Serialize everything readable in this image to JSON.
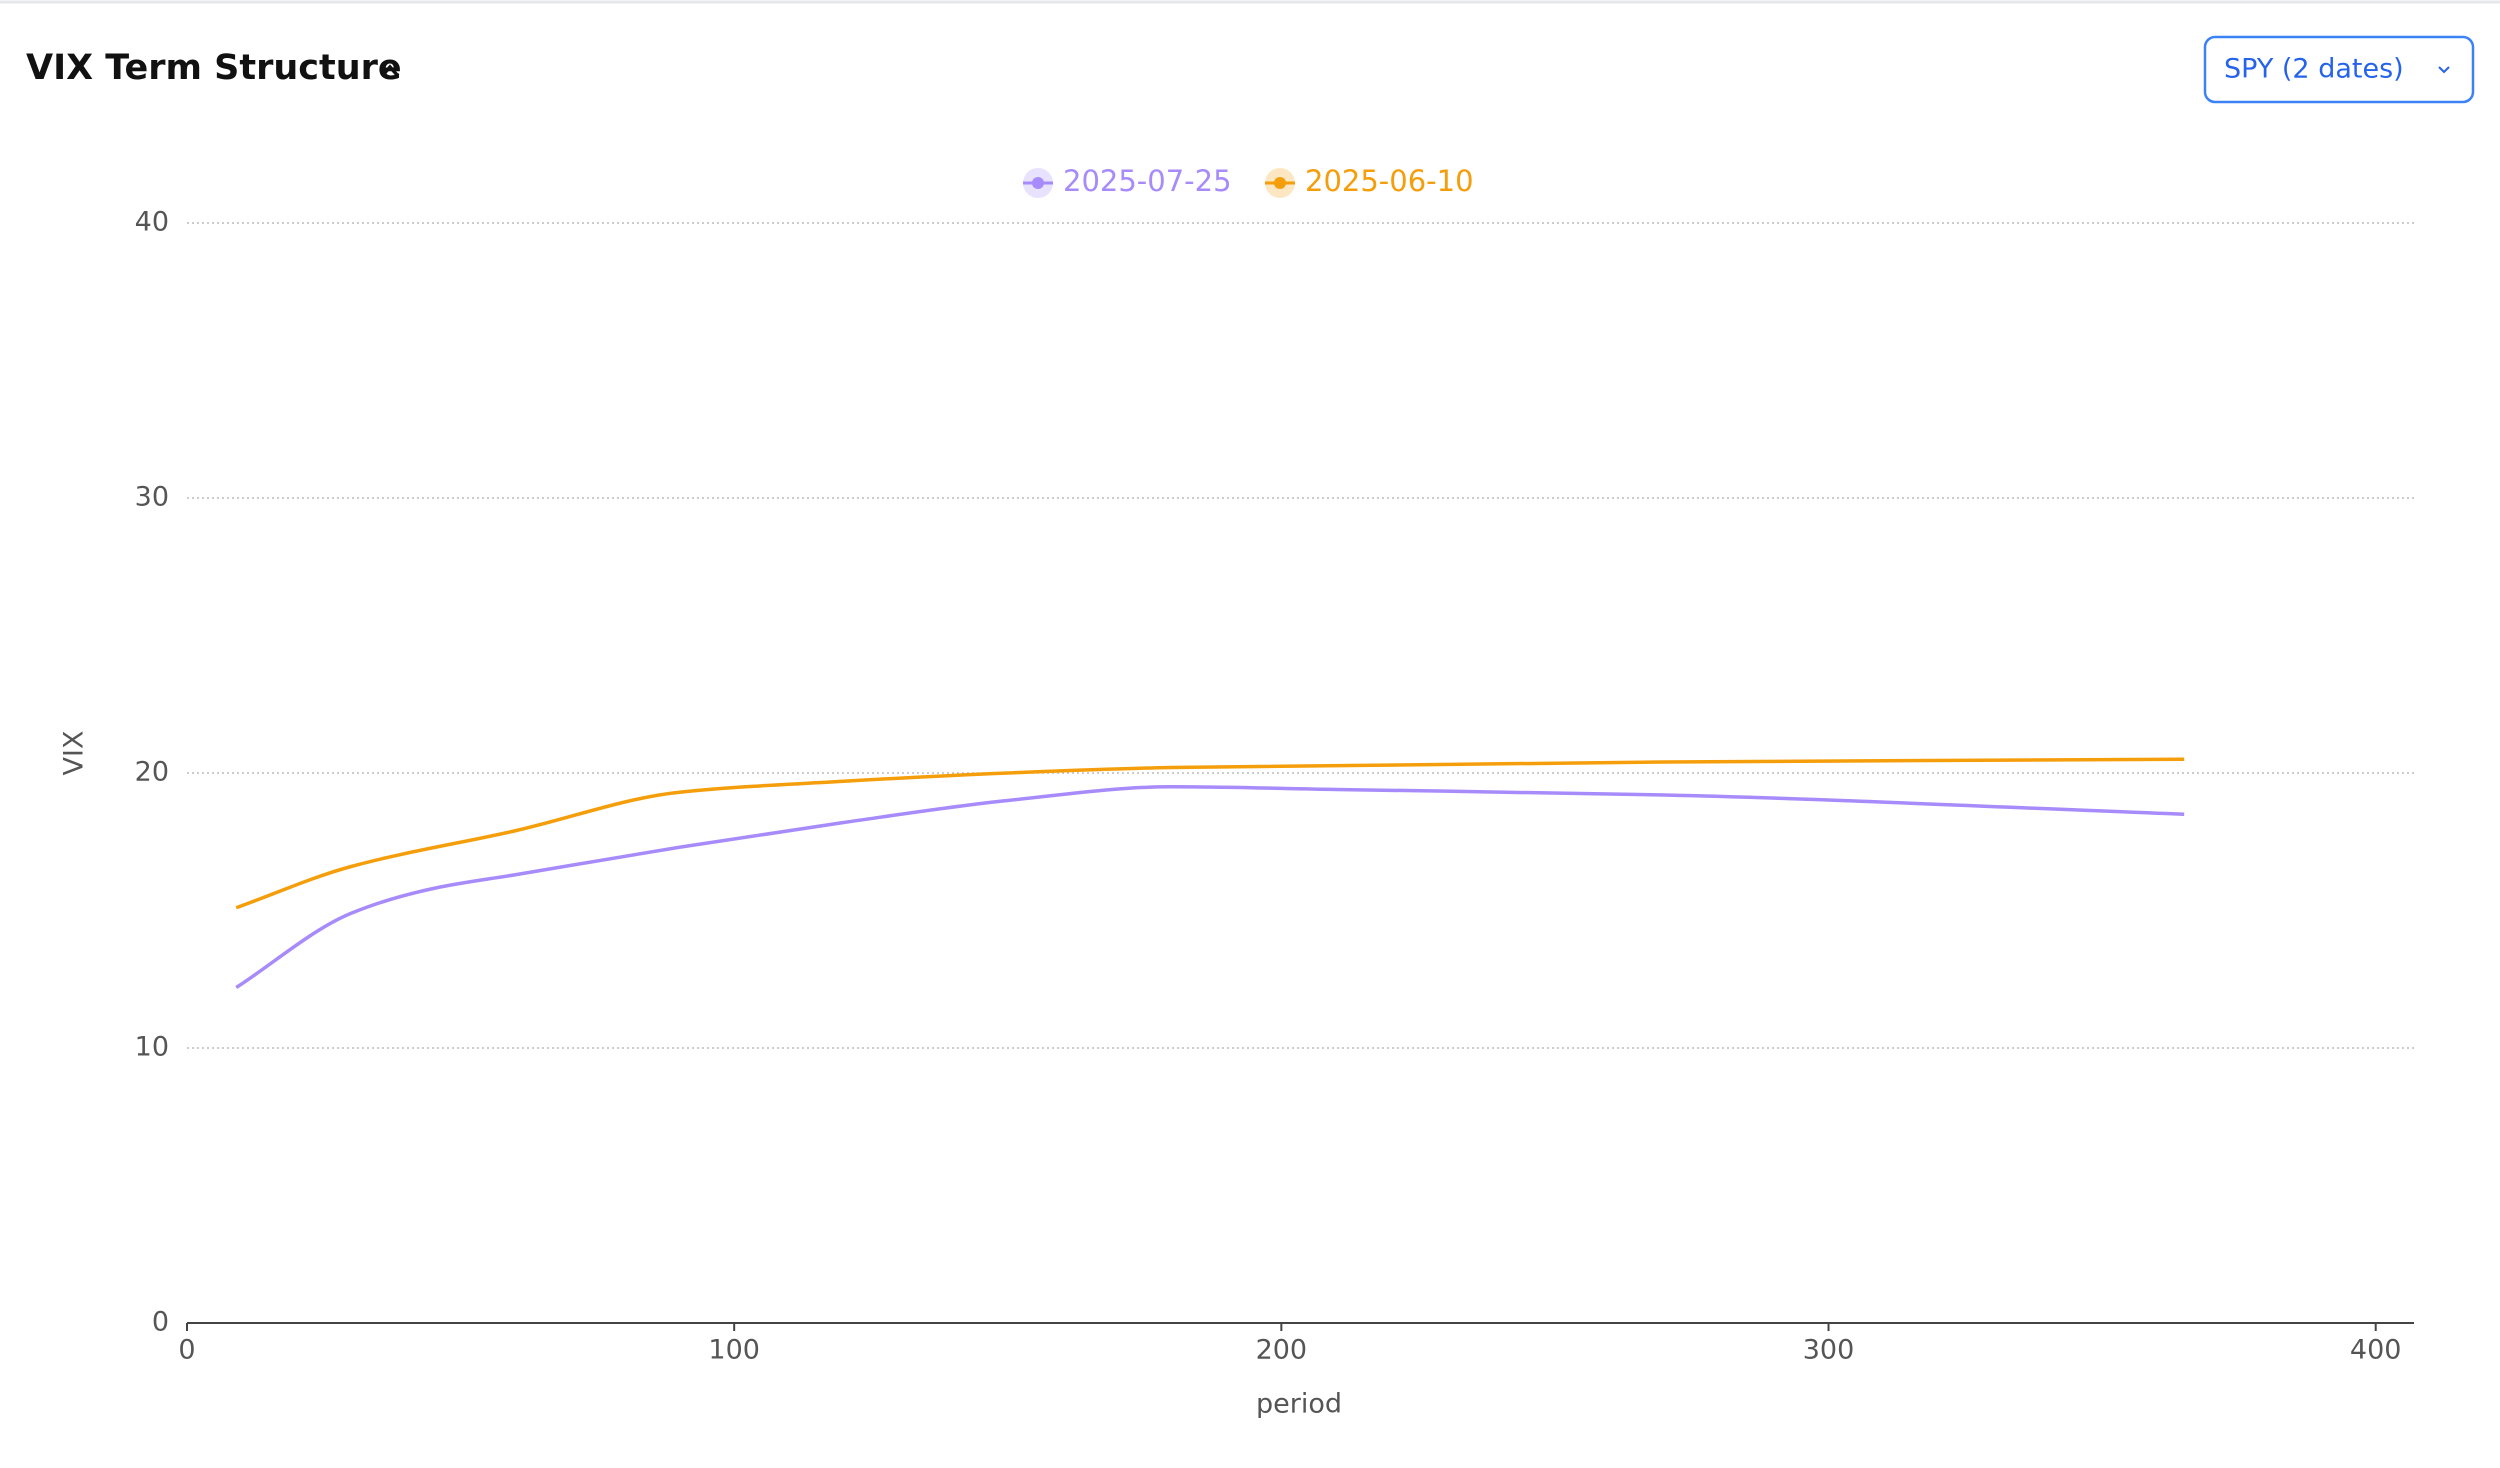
{
  "header": {
    "title": "VIX Term Structure",
    "dropdown": "SPY (2 dates)"
  },
  "chart_data": {
    "type": "line",
    "x_label": "period",
    "y_label": "VIX",
    "xlim": [
      0,
      407
    ],
    "xticks": [
      0,
      100,
      200,
      300,
      400
    ],
    "ylim": [
      0,
      40
    ],
    "yticks": [
      0,
      10,
      20,
      30,
      40
    ],
    "grid": true,
    "legend": "top",
    "series": [
      {
        "name": "2025-07-25",
        "color": "#a78bfa",
        "x": [
          9,
          30,
          45,
          60,
          90,
          120,
          150,
          180,
          210,
          270,
          365
        ],
        "values": [
          12.2,
          14.9,
          15.8,
          16.3,
          17.3,
          18.2,
          19.0,
          19.5,
          19.4,
          19.2,
          18.5
        ]
      },
      {
        "name": "2025-06-10",
        "color": "#f59e0b",
        "x": [
          9,
          30,
          60,
          90,
          120,
          150,
          180,
          270,
          365
        ],
        "values": [
          15.1,
          16.6,
          17.9,
          19.3,
          19.7,
          20.0,
          20.2,
          20.4,
          20.5
        ]
      }
    ]
  }
}
